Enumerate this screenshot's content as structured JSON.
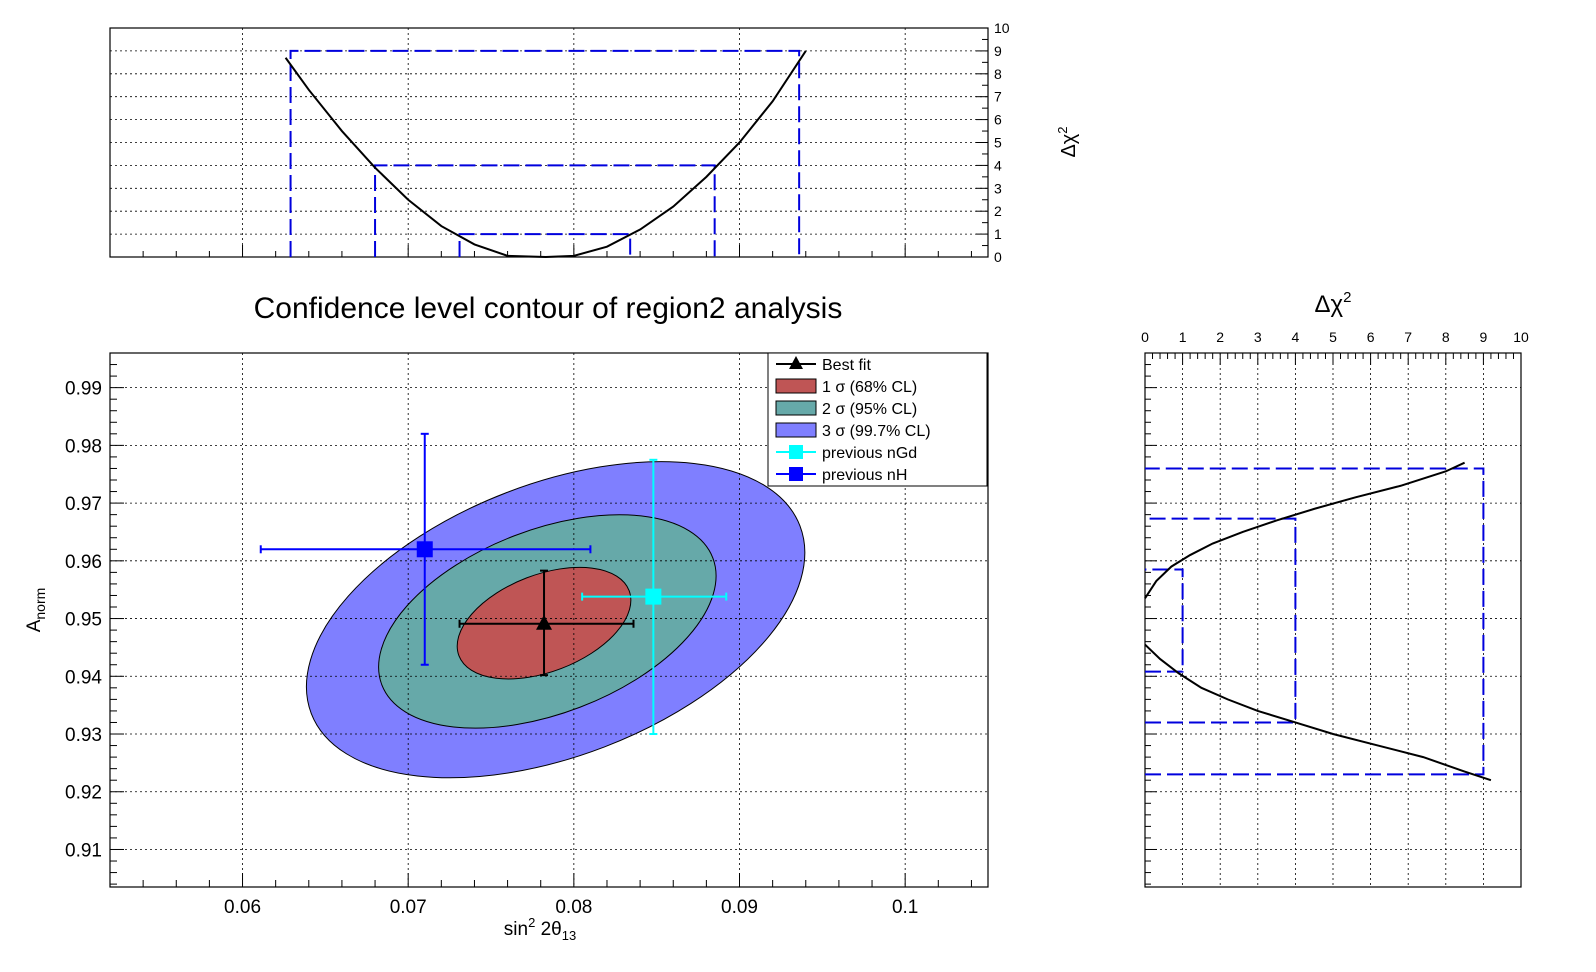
{
  "chart_data": [
    {
      "id": "main",
      "type": "contour",
      "title": "Confidence level contour of region2 analysis",
      "xlabel_html": "sin<tspan dy=\"-8\" font-size=\"13\">2</tspan><tspan dy=\"8\"> 2θ</tspan><tspan dy=\"5\" font-size=\"13\">13</tspan>",
      "ylabel_html": "A<tspan dy=\"5\" font-size=\"14\">norm</tspan>",
      "xlim": [
        0.052,
        0.105
      ],
      "ylim": [
        0.9035,
        0.996
      ],
      "xticks": [
        0.06,
        0.07,
        0.08,
        0.09,
        0.1
      ],
      "xtick_labels": [
        "0.06",
        "0.07",
        "0.08",
        "0.09",
        "0.1"
      ],
      "yticks": [
        0.91,
        0.92,
        0.93,
        0.94,
        0.95,
        0.96,
        0.97,
        0.98,
        0.99
      ],
      "ytick_labels": [
        "0.91",
        "0.92",
        "0.93",
        "0.94",
        "0.95",
        "0.96",
        "0.97",
        "0.98",
        "0.99"
      ],
      "grid": true,
      "contours": [
        {
          "name": "3 σ (99.7% CL)",
          "color": "#7f7fff",
          "center": [
            0.0789,
            0.9498
          ],
          "rx": 0.0158,
          "ry": 0.0236,
          "angle_deg": -21
        },
        {
          "name": "2 σ (95% CL)",
          "color": "#66a9a9",
          "center": [
            0.0784,
            0.9495
          ],
          "rx": 0.0107,
          "ry": 0.0159,
          "angle_deg": -21
        },
        {
          "name": "1 σ (68% CL)",
          "color": "#bf5555",
          "center": [
            0.0782,
            0.9492
          ],
          "rx": 0.0055,
          "ry": 0.0084,
          "angle_deg": -21
        }
      ],
      "best_fit": {
        "name": "Best fit",
        "x": 0.0782,
        "y": 0.9491,
        "xerr": [
          0.0731,
          0.0836
        ],
        "yerr": [
          0.9402,
          0.9583
        ],
        "color": "#000000"
      },
      "previous": [
        {
          "name": "previous nGd",
          "x": 0.0848,
          "y": 0.9538,
          "xerr": [
            0.0805,
            0.0892
          ],
          "yerr": [
            0.93,
            0.9775
          ],
          "color": "#00ffff"
        },
        {
          "name": "previous nH",
          "x": 0.071,
          "y": 0.962,
          "xerr": [
            0.0611,
            0.081
          ],
          "yerr": [
            0.942,
            0.982
          ],
          "color": "#0000ff"
        }
      ],
      "legend_position": "top-right",
      "legend": [
        "Best fit",
        "1 σ (68% CL)",
        "2 σ (95% CL)",
        "3 σ (99.7% CL)",
        "previous nGd",
        "previous nH"
      ]
    },
    {
      "id": "top-profile",
      "type": "line",
      "xlim": [
        0.052,
        0.105
      ],
      "ylim": [
        0,
        10
      ],
      "ylabel": "Δχ²",
      "yticks": [
        0,
        1,
        2,
        3,
        4,
        5,
        6,
        7,
        8,
        9,
        10
      ],
      "ytick_labels": [
        "0",
        "1",
        "2",
        "3",
        "4",
        "5",
        "6",
        "7",
        "8",
        "9",
        "10"
      ],
      "grid": true,
      "series": [
        {
          "x": [
            0.0626,
            0.064,
            0.066,
            0.068,
            0.07,
            0.072,
            0.074,
            0.076,
            0.0783,
            0.08,
            0.082,
            0.084,
            0.086,
            0.088,
            0.09,
            0.092,
            0.094
          ],
          "y": [
            8.7,
            7.3,
            5.5,
            3.9,
            2.5,
            1.35,
            0.55,
            0.05,
            0.0,
            0.05,
            0.45,
            1.2,
            2.2,
            3.5,
            5.0,
            6.8,
            9.0
          ]
        }
      ],
      "cl_boxes": [
        {
          "x0": 0.0731,
          "x1": 0.0834,
          "y": 1
        },
        {
          "x0": 0.068,
          "x1": 0.0885,
          "y": 4
        },
        {
          "x0": 0.0629,
          "x1": 0.0936,
          "y": 9
        }
      ]
    },
    {
      "id": "right-profile",
      "type": "line",
      "xlim": [
        0,
        10
      ],
      "ylim": [
        0.9035,
        0.996
      ],
      "xlabel": "Δχ²",
      "xticks": [
        0,
        1,
        2,
        3,
        4,
        5,
        6,
        7,
        8,
        9,
        10
      ],
      "xtick_labels": [
        "0",
        "1",
        "2",
        "3",
        "4",
        "5",
        "6",
        "7",
        "8",
        "9",
        "10"
      ],
      "grid": true,
      "series": [
        {
          "x": [
            0.0,
            0.3,
            0.7,
            1.2,
            1.8,
            2.6,
            3.5,
            4.5,
            5.6,
            6.8,
            8.0,
            8.5
          ],
          "y": [
            0.9535,
            0.9565,
            0.959,
            0.961,
            0.963,
            0.965,
            0.967,
            0.969,
            0.971,
            0.973,
            0.9755,
            0.977
          ]
        },
        {
          "x": [
            0.0,
            0.4,
            0.9,
            1.5,
            2.2,
            3.0,
            4.0,
            5.0,
            6.2,
            7.4,
            8.5,
            9.2
          ],
          "y": [
            0.9455,
            0.943,
            0.9405,
            0.938,
            0.936,
            0.934,
            0.932,
            0.93,
            0.928,
            0.926,
            0.9235,
            0.922
          ]
        }
      ],
      "cl_boxes": [
        {
          "y0": 0.9408,
          "y1": 0.9585,
          "x": 1
        },
        {
          "y0": 0.932,
          "y1": 0.9673,
          "x": 4
        },
        {
          "y0": 0.923,
          "y1": 0.976,
          "x": 9
        }
      ]
    }
  ]
}
